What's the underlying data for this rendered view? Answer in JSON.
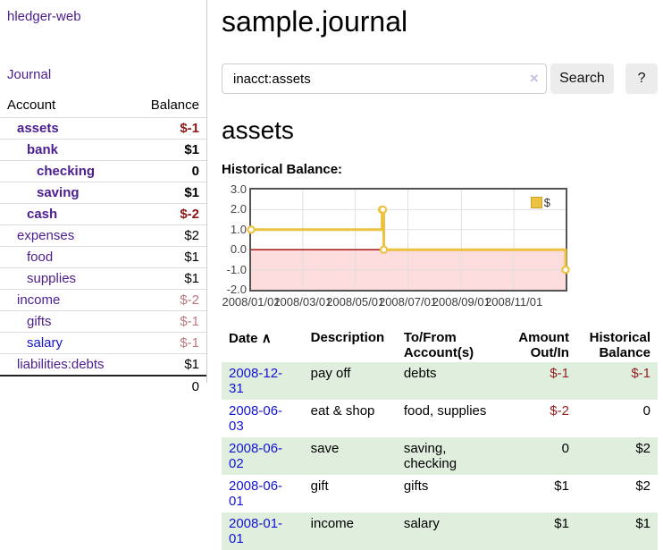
{
  "app": {
    "title": "hledger-web",
    "nav_journal": "Journal"
  },
  "sidebar": {
    "headers": {
      "account": "Account",
      "balance": "Balance"
    },
    "accounts": [
      {
        "name": "assets",
        "indent": 0,
        "bold": true,
        "link_blue": false,
        "balance": "$-1",
        "bal_class": "neg-strong"
      },
      {
        "name": "bank",
        "indent": 1,
        "bold": true,
        "link_blue": false,
        "balance": "$1",
        "bal_class": "pos-strong"
      },
      {
        "name": "checking",
        "indent": 2,
        "bold": true,
        "link_blue": false,
        "balance": "0",
        "bal_class": "pos-strong"
      },
      {
        "name": "saving",
        "indent": 2,
        "bold": true,
        "link_blue": false,
        "balance": "$1",
        "bal_class": "pos-strong"
      },
      {
        "name": "cash",
        "indent": 1,
        "bold": true,
        "link_blue": false,
        "balance": "$-2",
        "bal_class": "neg-strong"
      },
      {
        "name": "expenses",
        "indent": 0,
        "bold": false,
        "link_blue": false,
        "balance": "$2",
        "bal_class": ""
      },
      {
        "name": "food",
        "indent": 1,
        "bold": false,
        "link_blue": false,
        "balance": "$1",
        "bal_class": ""
      },
      {
        "name": "supplies",
        "indent": 1,
        "bold": false,
        "link_blue": false,
        "balance": "$1",
        "bal_class": ""
      },
      {
        "name": "income",
        "indent": 0,
        "bold": false,
        "link_blue": false,
        "balance": "$-2",
        "bal_class": "neg-soft"
      },
      {
        "name": "gifts",
        "indent": 1,
        "bold": false,
        "link_blue": false,
        "balance": "$-1",
        "bal_class": "neg-soft"
      },
      {
        "name": "salary",
        "indent": 1,
        "bold": false,
        "link_blue": true,
        "balance": "$-1",
        "bal_class": "neg-soft"
      },
      {
        "name": "liabilities:debts",
        "indent": 0,
        "bold": false,
        "link_blue": false,
        "balance": "$1",
        "bal_class": ""
      }
    ],
    "total": "0"
  },
  "main": {
    "title": "sample.journal",
    "search": {
      "value": "inacct:assets",
      "clear_icon": "×",
      "button_label": "Search",
      "help_label": "?"
    },
    "account_heading": "assets",
    "chart_label": "Historical Balance:"
  },
  "chart_data": {
    "type": "line",
    "style": "steps",
    "title": "Historical Balance",
    "legend": "$",
    "legend_position": "top-right",
    "series": [
      {
        "name": "$",
        "color": "#edc240",
        "points": [
          [
            "2008-01-01",
            1
          ],
          [
            "2008-06-01",
            2
          ],
          [
            "2008-06-02",
            2
          ],
          [
            "2008-06-03",
            0
          ],
          [
            "2008-12-31",
            -1
          ]
        ]
      }
    ],
    "x_start": "2008-01-01",
    "x_ticks": [
      [
        "2008-01-01",
        "2008/01/01"
      ],
      [
        "2008-03-01",
        "2008/03/01"
      ],
      [
        "2008-05-01",
        "2008/05/01"
      ],
      [
        "2008-07-01",
        "2008/07/01"
      ],
      [
        "2008-09-01",
        "2008/09/01"
      ],
      [
        "2008-11-01",
        "2008/11/01"
      ]
    ],
    "y_ticks": [
      [
        3,
        "3.0"
      ],
      [
        2,
        "2.0"
      ],
      [
        1,
        "1.0"
      ],
      [
        0,
        "0.0"
      ],
      [
        -1,
        "-1.0"
      ],
      [
        -2,
        "-2.0"
      ]
    ],
    "ylim": [
      -2,
      3
    ],
    "xlim_days": [
      0,
      365
    ],
    "grid": true,
    "grid_color": "#e0e0e0",
    "negative_fill": "#fcdcdc",
    "zero_line_color": "#a00000",
    "marker_fill": "#ffffff"
  },
  "table": {
    "headers": {
      "date": "Date",
      "sort_arrow": "∧",
      "description": "Description",
      "tofrom_1": "To/From",
      "tofrom_2": "Account(s)",
      "amount_1": "Amount",
      "amount_2": "Out/In",
      "balance_1": "Historical",
      "balance_2": "Balance"
    },
    "rows": [
      {
        "date": "2008-12-31",
        "description": "pay off",
        "accounts": "debts",
        "amount": "$-1",
        "amount_neg": true,
        "balance": "$-1",
        "balance_neg": true,
        "shaded": true
      },
      {
        "date": "2008-06-03",
        "description": "eat & shop",
        "accounts": "food, supplies",
        "amount": "$-2",
        "amount_neg": true,
        "balance": "0",
        "balance_neg": false,
        "shaded": false
      },
      {
        "date": "2008-06-02",
        "description": "save",
        "accounts": "saving, checking",
        "amount": "0",
        "amount_neg": false,
        "balance": "$2",
        "balance_neg": false,
        "shaded": true
      },
      {
        "date": "2008-06-01",
        "description": "gift",
        "accounts": "gifts",
        "amount": "$1",
        "amount_neg": false,
        "balance": "$2",
        "balance_neg": false,
        "shaded": false
      },
      {
        "date": "2008-01-01",
        "description": "income",
        "accounts": "salary",
        "amount": "$1",
        "amount_neg": false,
        "balance": "$1",
        "balance_neg": false,
        "shaded": true
      }
    ]
  }
}
